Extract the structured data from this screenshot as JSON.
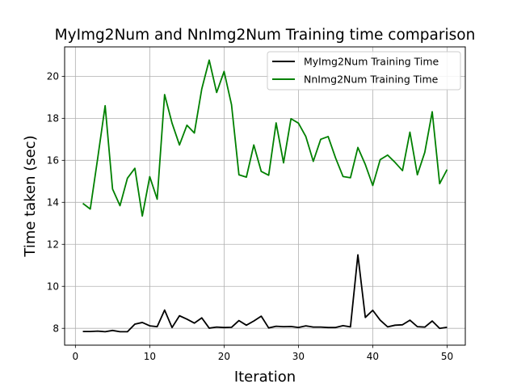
{
  "chart_data": {
    "type": "line",
    "title": "MyImg2Num and NnImg2Num Training time comparison",
    "xlabel": "Iteration",
    "ylabel": "Time taken (sec)",
    "xlim": [
      -1.45,
      52.45
    ],
    "ylim": [
      7.2,
      21.4
    ],
    "xticks": [
      0,
      10,
      20,
      30,
      40,
      50
    ],
    "yticks": [
      8,
      10,
      12,
      14,
      16,
      18,
      20
    ],
    "grid": true,
    "legend_position": "top-right",
    "x": [
      1,
      2,
      3,
      4,
      5,
      6,
      7,
      8,
      9,
      10,
      11,
      12,
      13,
      14,
      15,
      16,
      17,
      18,
      19,
      20,
      21,
      22,
      23,
      24,
      25,
      26,
      27,
      28,
      29,
      30,
      31,
      32,
      33,
      34,
      35,
      36,
      37,
      38,
      39,
      40,
      41,
      42,
      43,
      44,
      45,
      46,
      47,
      48,
      49,
      50
    ],
    "series": [
      {
        "name": "MyImg2Num Training Time",
        "color": "#000000",
        "values": [
          7.85,
          7.85,
          7.87,
          7.84,
          7.9,
          7.84,
          7.84,
          8.2,
          8.28,
          8.12,
          8.08,
          8.87,
          8.04,
          8.6,
          8.44,
          8.25,
          8.5,
          8.01,
          8.06,
          8.04,
          8.05,
          8.37,
          8.15,
          8.35,
          8.58,
          8.02,
          8.1,
          8.08,
          8.09,
          8.04,
          8.12,
          8.06,
          8.06,
          8.04,
          8.04,
          8.13,
          8.07,
          11.5,
          8.52,
          8.86,
          8.39,
          8.07,
          8.15,
          8.17,
          8.39,
          8.08,
          8.06,
          8.35,
          8.0,
          8.05
        ]
      },
      {
        "name": "NnImg2Num Training Time",
        "color": "#008000",
        "values": [
          13.95,
          13.68,
          16.1,
          18.6,
          14.63,
          13.84,
          15.15,
          15.62,
          13.35,
          15.22,
          14.15,
          19.13,
          17.77,
          16.73,
          17.67,
          17.3,
          19.4,
          20.77,
          19.23,
          20.23,
          18.65,
          15.31,
          15.2,
          16.73,
          15.47,
          15.29,
          17.78,
          15.88,
          17.98,
          17.77,
          17.13,
          15.95,
          17.0,
          17.13,
          16.11,
          15.23,
          15.17,
          16.61,
          15.8,
          14.8,
          16.03,
          16.25,
          15.9,
          15.51,
          17.34,
          15.31,
          16.38,
          18.31,
          14.89,
          15.56
        ]
      }
    ]
  }
}
